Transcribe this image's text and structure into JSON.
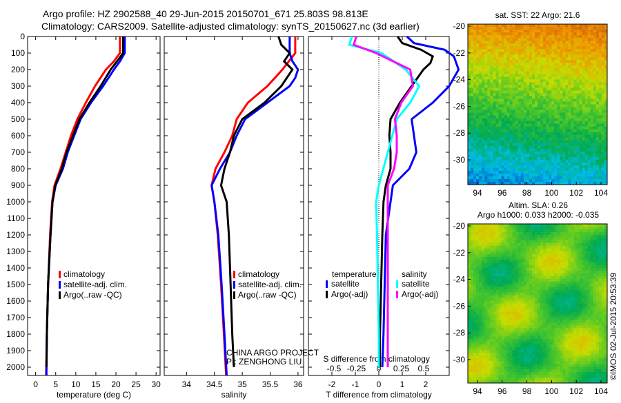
{
  "title_line1": "Argo profile: HZ 2902588_40 29-Jun-2015 20150701_671 25.803S 98.813E",
  "title_line2": "Climatology: CARS2009. Satellite-adjusted climatology: synTS_20150627.nc (3d earlier)",
  "colors": {
    "clim": "#ff0000",
    "sat": "#0000ff",
    "argo": "#000000",
    "ssat": "#00ffff",
    "sargo": "#ff00ff"
  },
  "chart_data": [
    {
      "type": "line",
      "name": "temperature",
      "xlabel": "temperature (deg C)",
      "xlim": [
        -2,
        31
      ],
      "ylim": [
        0,
        2050
      ],
      "xticks": [
        "0",
        "5",
        "10",
        "15",
        "20",
        "25",
        "30"
      ],
      "xtickvals": [
        0,
        5,
        10,
        15,
        20,
        25,
        30
      ],
      "yticks": [
        "0",
        "100",
        "200",
        "300",
        "400",
        "500",
        "600",
        "700",
        "800",
        "900",
        "1000",
        "1100",
        "1200",
        "1300",
        "1400",
        "1500",
        "1600",
        "1700",
        "1800",
        "1900",
        "2000"
      ],
      "legend": [
        "climatology",
        "satellite-adj. clim.",
        "Argo(..raw -QC)"
      ],
      "series": [
        {
          "name": "climatology",
          "color": "clim",
          "depth": [
            0,
            100,
            150,
            200,
            300,
            400,
            500,
            600,
            700,
            800,
            900,
            1000,
            1200,
            1500,
            1800,
            2050
          ],
          "values": [
            21,
            21,
            19.5,
            17.5,
            14.8,
            12.5,
            10.4,
            8.8,
            7.5,
            6.2,
            4.7,
            4.1,
            3.6,
            3.1,
            2.8,
            2.6
          ]
        },
        {
          "name": "satellite-adj. clim.",
          "color": "sat",
          "depth": [
            0,
            100,
            150,
            200,
            300,
            400,
            500,
            600,
            700,
            800,
            900,
            1000,
            1200,
            1500,
            1800,
            2050
          ],
          "values": [
            22.2,
            22.2,
            21,
            19.5,
            16.8,
            13.8,
            11.2,
            9.6,
            8,
            6.8,
            5,
            4.2,
            3.7,
            3.1,
            2.8,
            2.7
          ]
        },
        {
          "name": "Argo(..raw -QC)",
          "color": "argo",
          "depth": [
            0,
            100,
            150,
            200,
            300,
            400,
            500,
            600,
            700,
            800,
            900,
            1000,
            1200,
            1500,
            1800,
            2000
          ],
          "values": [
            21.8,
            21.8,
            20.3,
            18.7,
            16.2,
            13.4,
            10.9,
            9.3,
            7.7,
            6.5,
            4.9,
            4.2,
            3.7,
            3.1,
            2.8,
            2.7
          ]
        }
      ]
    },
    {
      "type": "line",
      "name": "salinity",
      "xlabel": "salinity",
      "xlim": [
        33.6,
        36.1
      ],
      "ylim": [
        0,
        2050
      ],
      "xticks": [
        "34",
        "34.5",
        "35",
        "35.5",
        "36"
      ],
      "xtickvals": [
        34,
        34.5,
        35,
        35.5,
        36
      ],
      "legend": [
        "climatology",
        "satellite-adj. clim.",
        "Argo(..raw -QC)"
      ],
      "annotation": [
        "CHINA ARGO PROJECT",
        "PI: ZENGHONG LIU"
      ],
      "series": [
        {
          "name": "climatology",
          "color": "clim",
          "depth": [
            0,
            100,
            200,
            300,
            400,
            500,
            600,
            700,
            800,
            900,
            1000,
            1200,
            1500,
            1800,
            2050
          ],
          "values": [
            35.95,
            35.95,
            35.72,
            35.45,
            35.1,
            34.9,
            34.82,
            34.68,
            34.52,
            34.45,
            34.5,
            34.56,
            34.62,
            34.67,
            34.71
          ]
        },
        {
          "name": "satellite-adj. clim.",
          "color": "sat",
          "depth": [
            0,
            100,
            150,
            200,
            250,
            300,
            400,
            500,
            600,
            700,
            800,
            900,
            1000,
            1200,
            1500,
            1800,
            2050
          ],
          "values": [
            35.85,
            35.85,
            35.9,
            36.0,
            35.95,
            35.85,
            35.45,
            35.05,
            34.9,
            34.78,
            34.6,
            34.45,
            34.5,
            34.57,
            34.63,
            34.68,
            34.72
          ]
        },
        {
          "name": "Argo(..raw -QC)",
          "color": "argo",
          "depth": [
            0,
            50,
            100,
            150,
            200,
            300,
            400,
            500,
            600,
            700,
            800,
            900,
            1000,
            1200,
            1500,
            1800,
            2000
          ],
          "values": [
            35.65,
            35.7,
            35.85,
            35.75,
            35.9,
            35.7,
            35.4,
            35.0,
            34.85,
            34.78,
            34.68,
            34.62,
            34.72,
            34.76,
            34.79,
            34.82,
            34.85
          ]
        }
      ]
    },
    {
      "type": "line",
      "name": "difference",
      "xlabel": "T difference from climatology",
      "xlim": [
        -3,
        3
      ],
      "ylim": [
        0,
        2050
      ],
      "xticks": [
        "-2",
        "-1",
        "0",
        "1",
        "2"
      ],
      "xtickvals": [
        -2,
        -1,
        0,
        1,
        2
      ],
      "s_label": "S difference from climatology",
      "s_ticks": [
        "-0.5",
        "-0.25",
        "0",
        "0.25",
        "0.5"
      ],
      "s_tickvals": [
        -0.5,
        -0.25,
        0,
        0.25,
        0.5
      ],
      "legend_t_header": "temperature",
      "legend_s_header": "salinity",
      "legend": [
        "satellite",
        "Argo(-adj)",
        "satellite",
        "Argo(-adj)"
      ],
      "series": [
        {
          "name": "T satellite",
          "color": "sat",
          "depth": [
            0,
            40,
            80,
            120,
            200,
            300,
            400,
            500,
            600,
            700,
            800,
            900,
            1000,
            1200,
            1500,
            1800,
            2000
          ],
          "values": [
            1.2,
            1.5,
            2.8,
            3.2,
            3.4,
            3.0,
            2.3,
            1.4,
            1.5,
            1.6,
            1.3,
            0.6,
            0.5,
            0.3,
            0.25,
            0.2,
            0.15
          ]
        },
        {
          "name": "T Argo",
          "color": "argo",
          "depth": [
            0,
            40,
            80,
            120,
            160,
            200,
            300,
            400,
            500,
            600,
            700,
            800,
            900,
            1000,
            1200,
            1500,
            1800,
            2000
          ],
          "values": [
            0.8,
            1.0,
            1.8,
            2.3,
            2.2,
            1.9,
            1.4,
            0.9,
            0.5,
            0.45,
            0.5,
            0.5,
            0.3,
            0.2,
            0.15,
            0.1,
            0.05,
            0.05
          ]
        },
        {
          "name": "S satellite",
          "color": "ssat",
          "depth": [
            0,
            50,
            100,
            200,
            300,
            400,
            500,
            600,
            700,
            800,
            900,
            1000,
            1200,
            1500,
            1800,
            2000
          ],
          "values": [
            -0.3,
            -0.33,
            0.03,
            0.3,
            0.45,
            0.35,
            0.2,
            0.15,
            0.1,
            0.05,
            0.0,
            -0.03,
            -0.02,
            -0.01,
            0,
            0
          ]
        },
        {
          "name": "S Argo",
          "color": "sargo",
          "depth": [
            0,
            50,
            100,
            200,
            300,
            400,
            500,
            600,
            700,
            800,
            900,
            1000,
            1200,
            1500,
            1800,
            2000
          ],
          "values": [
            -0.25,
            -0.28,
            -0.03,
            0.35,
            0.38,
            0.25,
            0.18,
            0.2,
            0.2,
            0.17,
            0.1,
            0.1,
            0.1,
            0.1,
            0.1,
            0.1
          ]
        }
      ]
    },
    {
      "type": "heatmap",
      "name": "sst_map",
      "title": "sat. SST: 22 Argo: 21.6",
      "xticks": [
        "94",
        "96",
        "98",
        "100",
        "102",
        "104"
      ],
      "yticks": [
        "-20",
        "-22",
        "-24",
        "-26",
        "-28",
        "-30"
      ]
    },
    {
      "type": "heatmap",
      "name": "sla_map",
      "title_line1": "Altim. SLA: 0.26",
      "title_line2": "Argo h1000: 0.033 h2000: -0.035",
      "xticks": [
        "94",
        "96",
        "98",
        "100",
        "102",
        "104"
      ],
      "yticks": [
        "-20",
        "-22",
        "-24",
        "-26",
        "-28",
        "-30"
      ]
    }
  ],
  "footer": "©IMOS 02-Jul-2015 20:53:39"
}
